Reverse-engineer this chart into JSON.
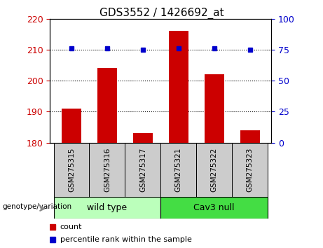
{
  "title": "GDS3552 / 1426692_at",
  "categories": [
    "GSM275315",
    "GSM275316",
    "GSM275317",
    "GSM275321",
    "GSM275322",
    "GSM275323"
  ],
  "bar_values": [
    191,
    204,
    183,
    216,
    202,
    184
  ],
  "percentile_values": [
    76,
    76,
    75,
    76,
    76,
    75
  ],
  "bar_bottom": 180,
  "ylim_left": [
    180,
    220
  ],
  "ylim_right": [
    0,
    100
  ],
  "yticks_left": [
    180,
    190,
    200,
    210,
    220
  ],
  "yticks_right": [
    0,
    25,
    50,
    75,
    100
  ],
  "bar_color": "#cc0000",
  "percentile_color": "#0000cc",
  "group1_label": "wild type",
  "group2_label": "Cav3 null",
  "group1_indices": [
    0,
    1,
    2
  ],
  "group2_indices": [
    3,
    4,
    5
  ],
  "group1_color": "#bbffbb",
  "group2_color": "#44dd44",
  "genotype_label": "genotype/variation",
  "legend_count": "count",
  "legend_percentile": "percentile rank within the sample",
  "bg_color": "#ffffff",
  "tick_color_left": "#cc0000",
  "tick_color_right": "#0000cc",
  "bar_width": 0.55,
  "label_bg": "#cccccc"
}
